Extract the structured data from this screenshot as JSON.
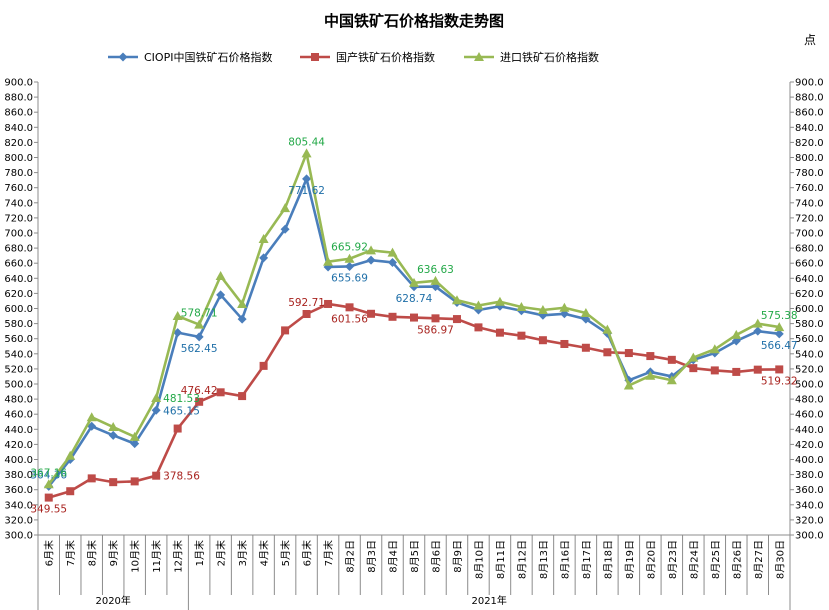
{
  "chart_data": {
    "type": "line",
    "title": "中国铁矿石价格指数走势图",
    "unit_label": "点",
    "ylim": [
      300,
      900
    ],
    "y_step": 20,
    "grid": false,
    "legend_position": "top",
    "categories": [
      "6月末",
      "7月末",
      "8月末",
      "9月末",
      "10月末",
      "11月末",
      "12月末",
      "1月末",
      "2月末",
      "3月末",
      "4月末",
      "5月末",
      "6月末",
      "7月末",
      "8月2日",
      "8月3日",
      "8月4日",
      "8月5日",
      "8月6日",
      "8月9日",
      "8月10日",
      "8月11日",
      "8月12日",
      "8月13日",
      "8月16日",
      "8月17日",
      "8月18日",
      "8月19日",
      "8月20日",
      "8月23日",
      "8月24日",
      "8月25日",
      "8月26日",
      "8月27日",
      "8月30日"
    ],
    "year_groups": [
      {
        "label": "2020年",
        "count": 7
      },
      {
        "label": "2021年",
        "count": 28
      }
    ],
    "series": [
      {
        "name": "CIOPI中国铁矿石价格指数",
        "color": "#4a7ebb",
        "marker": "diamond",
        "values": [
          364.36,
          400,
          444,
          432,
          421,
          465.15,
          568,
          562.45,
          618,
          586,
          667,
          705,
          771.62,
          655,
          655.69,
          664,
          661,
          628.74,
          629,
          608,
          598,
          603,
          597,
          591,
          593,
          586,
          567,
          505,
          516,
          510,
          532,
          541,
          557,
          570,
          566.47
        ]
      },
      {
        "name": "国产铁矿石价格指数",
        "color": "#be4b48",
        "marker": "square",
        "values": [
          349.55,
          358,
          375,
          370,
          371,
          378.56,
          441,
          476.42,
          489,
          484,
          524,
          571,
          592.71,
          606,
          601.56,
          593,
          589,
          588,
          586.97,
          586,
          575,
          568,
          564,
          558,
          553,
          548,
          542,
          541,
          537,
          532,
          521,
          518,
          516,
          519,
          519.32
        ]
      },
      {
        "name": "进口铁矿石价格指数",
        "color": "#98b954",
        "marker": "triangle",
        "values": [
          367.16,
          405,
          456,
          443,
          430,
          481.53,
          590,
          578.71,
          643,
          606,
          692,
          733,
          805.44,
          662,
          665.92,
          677,
          674,
          634,
          636.63,
          611,
          604,
          609,
          602,
          598,
          601,
          594,
          572,
          498,
          511,
          505,
          535,
          546,
          565,
          580,
          575.38
        ]
      }
    ],
    "data_labels": [
      {
        "series": 0,
        "index": 0,
        "text": "364.36",
        "pos": "above"
      },
      {
        "series": 0,
        "index": 5,
        "text": "465.15",
        "pos": "right"
      },
      {
        "series": 0,
        "index": 7,
        "text": "562.45",
        "pos": "below"
      },
      {
        "series": 0,
        "index": 12,
        "text": "771.62",
        "pos": "below"
      },
      {
        "series": 0,
        "index": 14,
        "text": "655.69",
        "pos": "below"
      },
      {
        "series": 0,
        "index": 17,
        "text": "628.74",
        "pos": "below"
      },
      {
        "series": 0,
        "index": 34,
        "text": "566.47",
        "pos": "below"
      },
      {
        "series": 1,
        "index": 0,
        "text": "349.55",
        "pos": "below"
      },
      {
        "series": 1,
        "index": 5,
        "text": "378.56",
        "pos": "right"
      },
      {
        "series": 1,
        "index": 7,
        "text": "476.42",
        "pos": "above"
      },
      {
        "series": 1,
        "index": 12,
        "text": "592.71",
        "pos": "above"
      },
      {
        "series": 1,
        "index": 14,
        "text": "601.56",
        "pos": "below"
      },
      {
        "series": 1,
        "index": 18,
        "text": "586.97",
        "pos": "below"
      },
      {
        "series": 1,
        "index": 34,
        "text": "519.32",
        "pos": "below"
      },
      {
        "series": 2,
        "index": 0,
        "text": "367.16",
        "pos": "above"
      },
      {
        "series": 2,
        "index": 5,
        "text": "481.53",
        "pos": "right"
      },
      {
        "series": 2,
        "index": 7,
        "text": "578.71",
        "pos": "above"
      },
      {
        "series": 2,
        "index": 12,
        "text": "805.44",
        "pos": "above"
      },
      {
        "series": 2,
        "index": 14,
        "text": "665.92",
        "pos": "above"
      },
      {
        "series": 2,
        "index": 18,
        "text": "636.63",
        "pos": "above"
      },
      {
        "series": 2,
        "index": 34,
        "text": "575.38",
        "pos": "above"
      }
    ]
  }
}
